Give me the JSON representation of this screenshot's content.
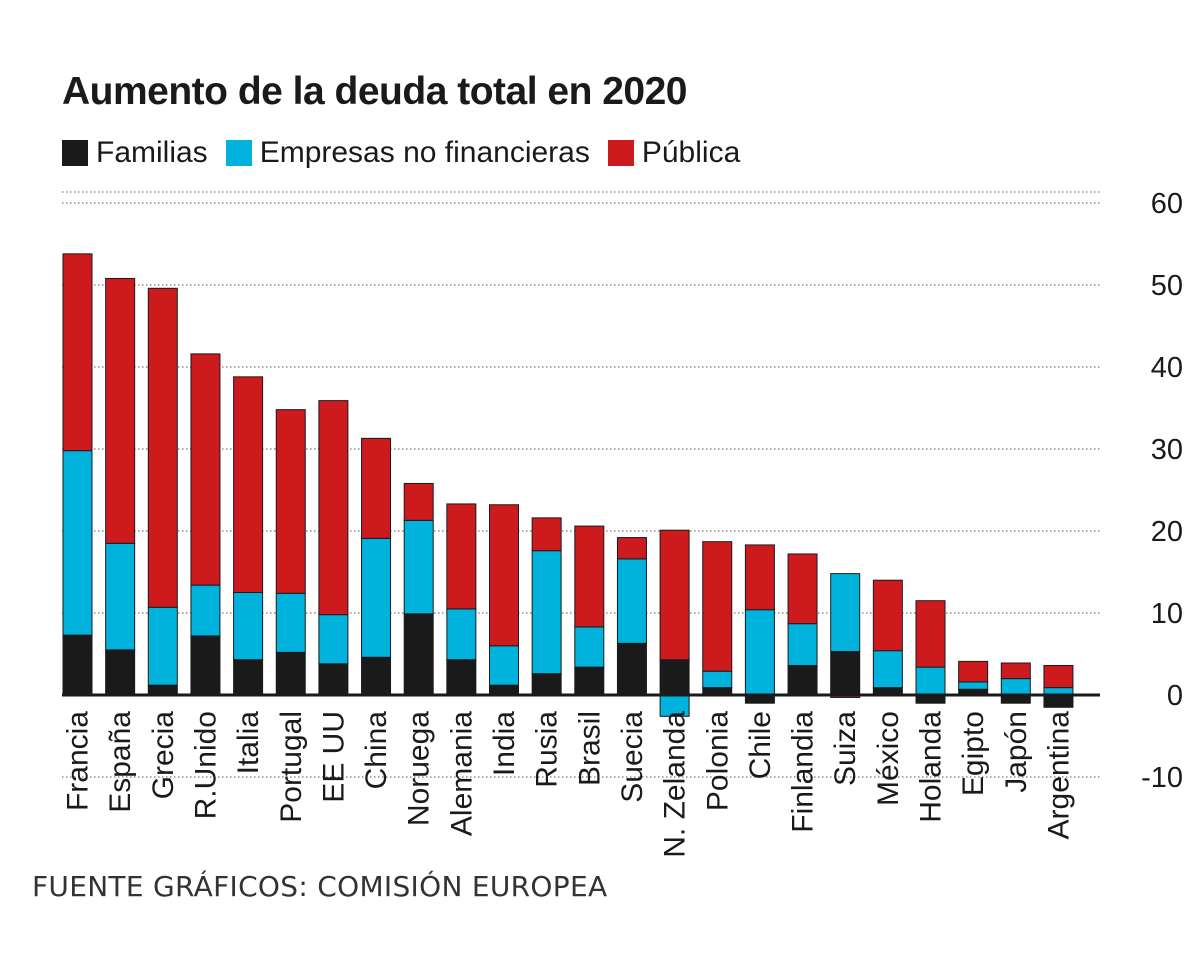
{
  "title": "Aumento de la deuda total en 2020",
  "source": "FUENTE GRÁFICOS: COMISIÓN EUROPEA",
  "legend": [
    {
      "label": "Familias",
      "color": "#1a1a1a"
    },
    {
      "label": "Empresas no financieras",
      "color": "#00b2dc"
    },
    {
      "label": "Pública",
      "color": "#cc1a1d"
    }
  ],
  "chart_data": {
    "type": "bar",
    "stacked": true,
    "title": "Aumento de la deuda total en 2020",
    "xlabel": "",
    "ylabel": "",
    "ylim": [
      -10,
      60
    ],
    "yticks": [
      -10,
      0,
      10,
      20,
      30,
      40,
      50,
      60
    ],
    "grid": "dotted horizontal",
    "legend_position": "top-left",
    "categories": [
      "Francia",
      "España",
      "Grecia",
      "R.Unido",
      "Italia",
      "Portugal",
      "EE UU",
      "China",
      "Noruega",
      "Alemania",
      "India",
      "Rusia",
      "Brasil",
      "Suecia",
      "N. Zelanda",
      "Polonia",
      "Chile",
      "Finlandia",
      "Suiza",
      "México",
      "Holanda",
      "Egipto",
      "Japón",
      "Argentina"
    ],
    "series": [
      {
        "name": "Familias",
        "color": "#1a1a1a",
        "values": [
          7.3,
          5.5,
          1.2,
          7.2,
          4.3,
          5.2,
          3.8,
          4.6,
          9.9,
          4.3,
          1.2,
          2.6,
          3.4,
          6.3,
          4.3,
          0.9,
          -1.0,
          3.6,
          5.3,
          0.9,
          -1.0,
          0.7,
          -1.0,
          -1.5
        ]
      },
      {
        "name": "Empresas no financieras",
        "color": "#00b2dc",
        "values": [
          22.5,
          13.0,
          9.5,
          6.2,
          8.2,
          7.2,
          6.0,
          14.5,
          11.4,
          6.2,
          4.8,
          15.0,
          4.9,
          10.3,
          -2.6,
          2.0,
          10.4,
          5.1,
          9.5,
          4.5,
          3.4,
          0.9,
          2.0,
          0.9
        ]
      },
      {
        "name": "Pública",
        "color": "#cc1a1d",
        "values": [
          24.0,
          32.3,
          38.9,
          28.2,
          26.3,
          22.4,
          26.1,
          12.2,
          4.5,
          12.8,
          17.2,
          4.0,
          12.3,
          2.6,
          15.8,
          15.8,
          7.9,
          8.5,
          -0.3,
          8.6,
          8.1,
          2.5,
          1.9,
          2.7
        ]
      }
    ]
  }
}
